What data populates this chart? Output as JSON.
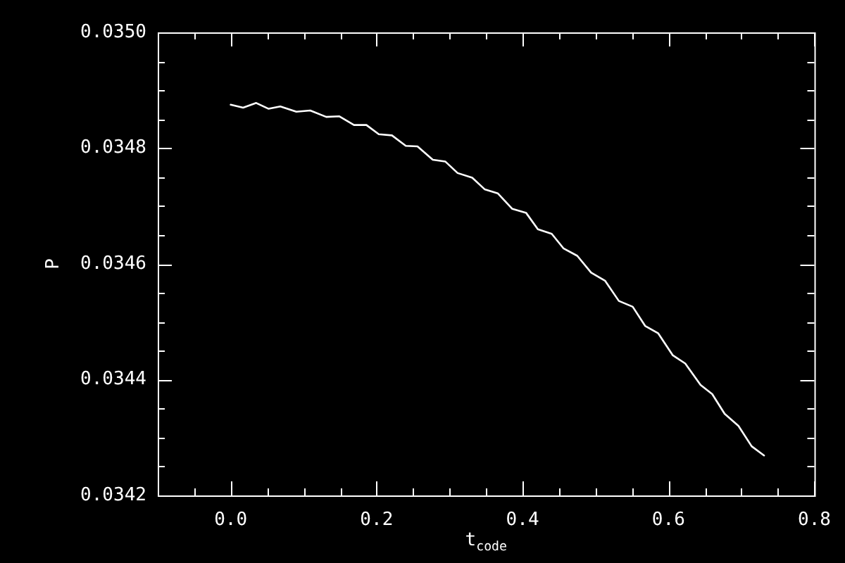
{
  "chart_data": {
    "type": "line",
    "xlabel": "t$_{code}$",
    "ylabel": "P",
    "x": [
      0.0,
      0.017,
      0.035,
      0.052,
      0.068,
      0.09,
      0.109,
      0.131,
      0.149,
      0.169,
      0.186,
      0.203,
      0.221,
      0.24,
      0.256,
      0.277,
      0.294,
      0.311,
      0.331,
      0.348,
      0.366,
      0.386,
      0.405,
      0.421,
      0.44,
      0.456,
      0.475,
      0.494,
      0.513,
      0.532,
      0.551,
      0.568,
      0.586,
      0.606,
      0.623,
      0.644,
      0.66,
      0.677,
      0.696,
      0.714,
      0.731
    ],
    "series": [
      {
        "color": "#ffffff",
        "values": [
          0.034875,
          0.03487,
          0.034878,
          0.034868,
          0.034872,
          0.034863,
          0.034865,
          0.034854,
          0.034855,
          0.03484,
          0.03484,
          0.034824,
          0.034822,
          0.034804,
          0.034803,
          0.03478,
          0.034777,
          0.034757,
          0.034749,
          0.034729,
          0.034722,
          0.034695,
          0.034688,
          0.03466,
          0.034652,
          0.034627,
          0.034614,
          0.034585,
          0.034571,
          0.034536,
          0.034526,
          0.034493,
          0.03448,
          0.034442,
          0.034428,
          0.034391,
          0.034375,
          0.034341,
          0.03432,
          0.034285,
          0.034269
        ]
      }
    ],
    "xlim": [
      -0.1,
      0.8
    ],
    "xticks": [
      {
        "value": 0,
        "label": "0.0"
      },
      {
        "value": 0.2,
        "label": "0.2"
      },
      {
        "value": 0.4,
        "label": "0.4"
      },
      {
        "value": 0.6,
        "label": "0.6"
      },
      {
        "value": 0.8,
        "label": "0.8"
      }
    ],
    "ylim": [
      0.0342,
      0.035
    ],
    "yticks": [
      {
        "value": 0.0342,
        "label": "0.0342"
      },
      {
        "value": 0.0344,
        "label": "0.0344"
      },
      {
        "value": 0.0346,
        "label": "0.0346"
      },
      {
        "value": 0.0348,
        "label": "0.0348"
      },
      {
        "value": 0.035,
        "label": "0.0350"
      }
    ],
    "grid": false,
    "legend": false,
    "marker": "none",
    "line_style": "solid"
  }
}
